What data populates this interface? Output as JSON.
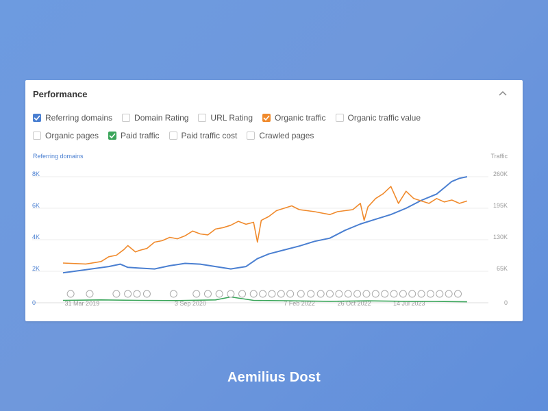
{
  "card": {
    "title": "Performance"
  },
  "checkboxes": [
    {
      "label": "Referring domains",
      "checked": true,
      "color": "#4a7fd1"
    },
    {
      "label": "Domain Rating",
      "checked": false
    },
    {
      "label": "URL Rating",
      "checked": false
    },
    {
      "label": "Organic traffic",
      "checked": true,
      "color": "#f08a2c"
    },
    {
      "label": "Organic traffic value",
      "checked": false
    },
    {
      "label": "Organic pages",
      "checked": false
    },
    {
      "label": "Paid traffic",
      "checked": true,
      "color": "#3aa55a"
    },
    {
      "label": "Paid traffic cost",
      "checked": false
    },
    {
      "label": "Crawled pages",
      "checked": false
    }
  ],
  "collapse_icon": "chevron-up-icon",
  "chart_data": {
    "type": "line",
    "left_axis_title": "Referring domains",
    "right_axis_title": "Traffic",
    "left_ticks": [
      "0",
      "2K",
      "4K",
      "6K",
      "8K"
    ],
    "left_tick_values": [
      0,
      2000,
      4000,
      6000,
      8000
    ],
    "right_ticks": [
      "0",
      "65K",
      "130K",
      "195K",
      "260K"
    ],
    "right_tick_values": [
      0,
      65000,
      130000,
      195000,
      260000
    ],
    "x_ticks": [
      "31 Mar 2019",
      "3 Sep 2020",
      "7 Feb 2022",
      "26 Oct 2022",
      "14 Jul 2023"
    ],
    "x_tick_years": [
      2019.25,
      2020.67,
      2022.1,
      2022.82,
      2023.54
    ],
    "x_range": [
      2019.0,
      2024.4
    ],
    "series": [
      {
        "name": "Referring domains",
        "axis": "left",
        "color": "#4a7fd1",
        "x": [
          2019.0,
          2019.3,
          2019.6,
          2019.75,
          2019.85,
          2020.0,
          2020.2,
          2020.4,
          2020.6,
          2020.8,
          2021.0,
          2021.2,
          2021.4,
          2021.55,
          2021.7,
          2021.9,
          2022.1,
          2022.3,
          2022.5,
          2022.7,
          2022.9,
          2023.1,
          2023.3,
          2023.5,
          2023.7,
          2023.9,
          2024.0,
          2024.1,
          2024.2,
          2024.3
        ],
        "values": [
          1900,
          2100,
          2300,
          2450,
          2250,
          2200,
          2150,
          2350,
          2500,
          2450,
          2300,
          2150,
          2300,
          2800,
          3100,
          3350,
          3600,
          3900,
          4100,
          4600,
          5000,
          5300,
          5600,
          6000,
          6500,
          6900,
          7300,
          7700,
          7900,
          8000
        ]
      },
      {
        "name": "Organic traffic",
        "axis": "right",
        "color": "#f08a2c",
        "x": [
          2019.0,
          2019.3,
          2019.5,
          2019.6,
          2019.7,
          2019.8,
          2019.85,
          2019.95,
          2020.0,
          2020.1,
          2020.2,
          2020.3,
          2020.4,
          2020.5,
          2020.6,
          2020.7,
          2020.8,
          2020.9,
          2021.0,
          2021.1,
          2021.2,
          2021.3,
          2021.4,
          2021.5,
          2021.55,
          2021.6,
          2021.7,
          2021.8,
          2021.9,
          2022.0,
          2022.1,
          2022.2,
          2022.3,
          2022.4,
          2022.5,
          2022.6,
          2022.7,
          2022.8,
          2022.9,
          2022.95,
          2023.0,
          2023.1,
          2023.2,
          2023.3,
          2023.4,
          2023.5,
          2023.6,
          2023.7,
          2023.8,
          2023.9,
          2024.0,
          2024.1,
          2024.2,
          2024.3
        ],
        "values": [
          82000,
          80000,
          85000,
          95000,
          98000,
          110000,
          118000,
          105000,
          108000,
          112000,
          125000,
          128000,
          135000,
          132000,
          138000,
          148000,
          142000,
          140000,
          152000,
          155000,
          160000,
          168000,
          162000,
          166000,
          125000,
          170000,
          178000,
          190000,
          195000,
          200000,
          192000,
          190000,
          188000,
          185000,
          182000,
          188000,
          190000,
          192000,
          205000,
          170000,
          198000,
          215000,
          225000,
          240000,
          205000,
          230000,
          215000,
          210000,
          205000,
          215000,
          208000,
          212000,
          205000,
          210000
        ]
      },
      {
        "name": "Paid traffic",
        "axis": "right",
        "color": "#3aa55a",
        "x": [
          2019.0,
          2019.5,
          2020.0,
          2020.5,
          2021.0,
          2021.2,
          2021.5,
          2022.0,
          2022.5,
          2023.0,
          2023.5,
          2024.0,
          2024.3
        ],
        "values": [
          5000,
          6000,
          5000,
          4500,
          6000,
          12000,
          5000,
          4000,
          3000,
          4000,
          3000,
          2500,
          2000
        ]
      }
    ]
  },
  "footer": {
    "name": "Aemilius Dost"
  }
}
